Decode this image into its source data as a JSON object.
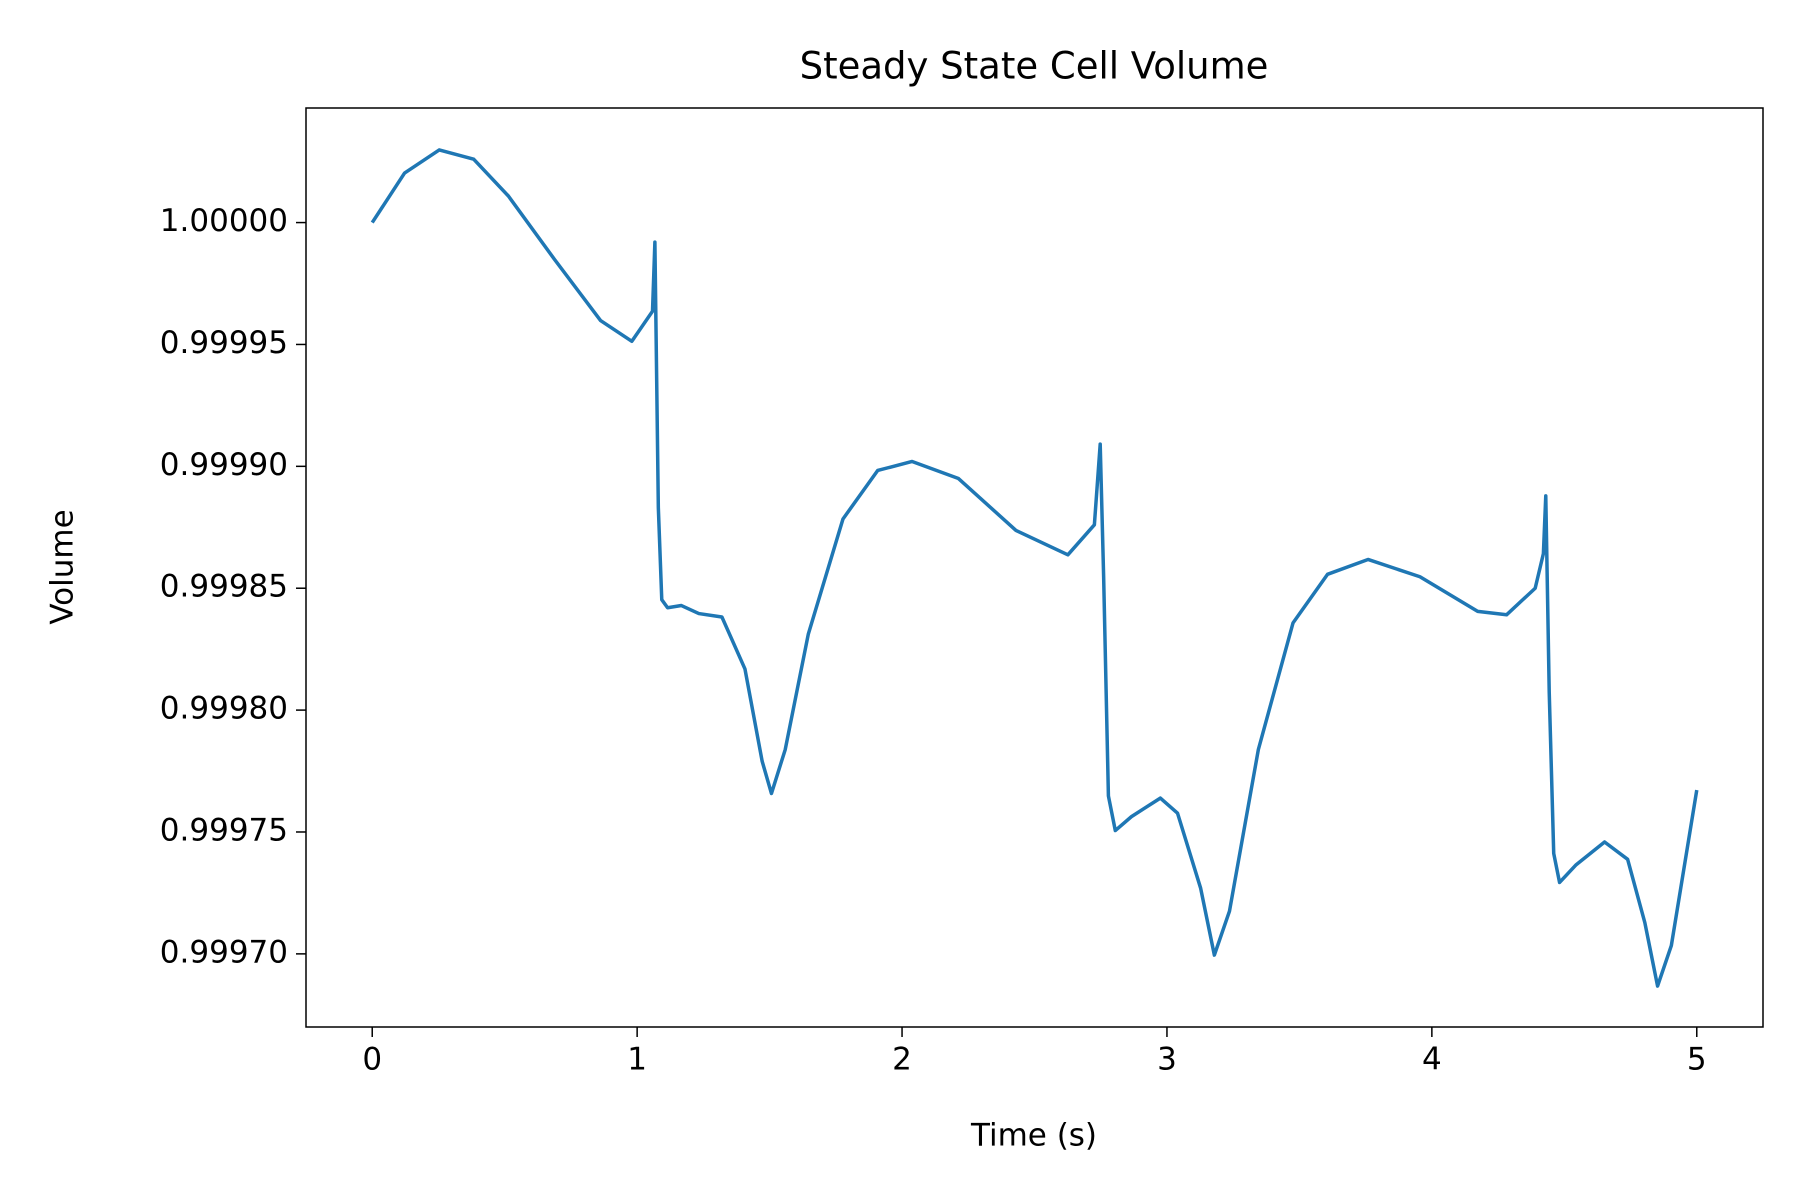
{
  "chart_data": {
    "type": "line",
    "title": "Steady State Cell Volume",
    "x_label": "Time (s)",
    "y_label": "Volume",
    "color": "#1f77b4",
    "x": [
      0,
      0.122,
      0.253,
      0.383,
      0.514,
      0.688,
      0.862,
      0.98,
      1.058,
      1.067,
      1.08,
      1.093,
      1.115,
      1.167,
      1.233,
      1.32,
      1.407,
      1.472,
      1.507,
      1.559,
      1.646,
      1.777,
      1.908,
      2.038,
      2.213,
      2.43,
      2.626,
      2.726,
      2.748,
      2.761,
      2.779,
      2.805,
      2.866,
      2.975,
      3.04,
      3.127,
      3.179,
      3.236,
      3.345,
      3.476,
      3.606,
      3.759,
      3.955,
      4.173,
      4.282,
      4.39,
      4.421,
      4.43,
      4.443,
      4.46,
      4.482,
      4.543,
      4.652,
      4.739,
      4.804,
      4.852,
      4.904,
      5.0
    ],
    "values": [
      1.0,
      1.0000203,
      1.0000298,
      1.000026,
      1.0000109,
      0.9999849,
      0.9999598,
      0.9999513,
      0.9999636,
      0.999992,
      0.9998831,
      0.9998453,
      0.999842,
      0.9998429,
      0.9998396,
      0.9998382,
      0.9998169,
      0.999779,
      0.9997658,
      0.9997838,
      0.9998311,
      0.9998784,
      0.9998983,
      0.999902,
      0.999895,
      0.9998737,
      0.9998637,
      0.999876,
      0.9999091,
      0.9998547,
      0.9997648,
      0.9997506,
      0.9997563,
      0.9997639,
      0.9997577,
      0.999727,
      0.9996995,
      0.9997175,
      0.9997838,
      0.9998358,
      0.9998557,
      0.9998618,
      0.9998547,
      0.9998405,
      0.9998391,
      0.99985,
      0.9998642,
      0.9998879,
      0.9998074,
      0.9997412,
      0.9997293,
      0.9997364,
      0.9997459,
      0.9997388,
      0.9997128,
      0.9996868,
      0.9997034,
      0.9997672
    ],
    "xlim": [
      -0.25,
      5.25
    ],
    "ylim": [
      0.99967,
      1.000047
    ],
    "xticks": [
      0,
      1,
      2,
      3,
      4,
      5
    ],
    "yticks": [
      {
        "value": 0.9997,
        "label": "0.99970"
      },
      {
        "value": 0.99975,
        "label": "0.99975"
      },
      {
        "value": 0.9998,
        "label": "0.99980"
      },
      {
        "value": 0.99985,
        "label": "0.99985"
      },
      {
        "value": 0.9999,
        "label": "0.99990"
      },
      {
        "value": 0.99995,
        "label": "0.99995"
      },
      {
        "value": 1.0,
        "label": "1.00000"
      }
    ],
    "grid": false
  }
}
